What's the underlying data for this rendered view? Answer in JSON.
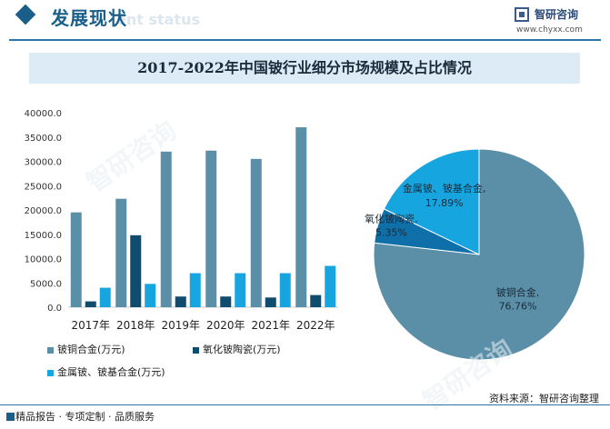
{
  "header": {
    "title": "发展现状",
    "subtitle": "ent status"
  },
  "brand": {
    "name": "智研咨询",
    "url": "www.chyxx.com"
  },
  "watermark": "智研咨询",
  "chart_title": "2017-2022年中国铍行业细分市场规模及占比情况",
  "chart_data": [
    {
      "type": "bar",
      "categories": [
        "2017年",
        "2018年",
        "2019年",
        "2020年",
        "2021年",
        "2022年"
      ],
      "series": [
        {
          "name": "铍铜合金(万元)",
          "color": "#5b8fa8",
          "values": [
            19500,
            22300,
            32000,
            32200,
            30500,
            37000
          ]
        },
        {
          "name": "氧化铍陶瓷(万元)",
          "color": "#0f4c6e",
          "values": [
            1200,
            14800,
            2200,
            2200,
            2000,
            2500
          ]
        },
        {
          "name": "金属铍、铍基合金(万元)",
          "color": "#17a5e0",
          "values": [
            4000,
            4800,
            7000,
            7000,
            7000,
            8500
          ]
        }
      ],
      "ylim": [
        0,
        40000
      ],
      "yticks": [
        "0.0",
        "5000.0",
        "10000.0",
        "15000.0",
        "20000.0",
        "25000.0",
        "30000.0",
        "35000.0",
        "40000.0"
      ],
      "legend": "bottom"
    },
    {
      "type": "pie",
      "labels": [
        "铍铜合金,",
        "氧化铍陶瓷,",
        "金属铍、铍基合金,"
      ],
      "values": [
        76.76,
        5.35,
        17.89
      ],
      "value_labels": [
        "76.76%",
        "5.35%",
        "17.89%"
      ],
      "colors": [
        "#5b8fa8",
        "#0f6fa8",
        "#17a5e0"
      ]
    }
  ],
  "footer": {
    "left": "精品报告 · 专项定制 · 品质服务",
    "right": "资料来源：智研咨询整理"
  }
}
